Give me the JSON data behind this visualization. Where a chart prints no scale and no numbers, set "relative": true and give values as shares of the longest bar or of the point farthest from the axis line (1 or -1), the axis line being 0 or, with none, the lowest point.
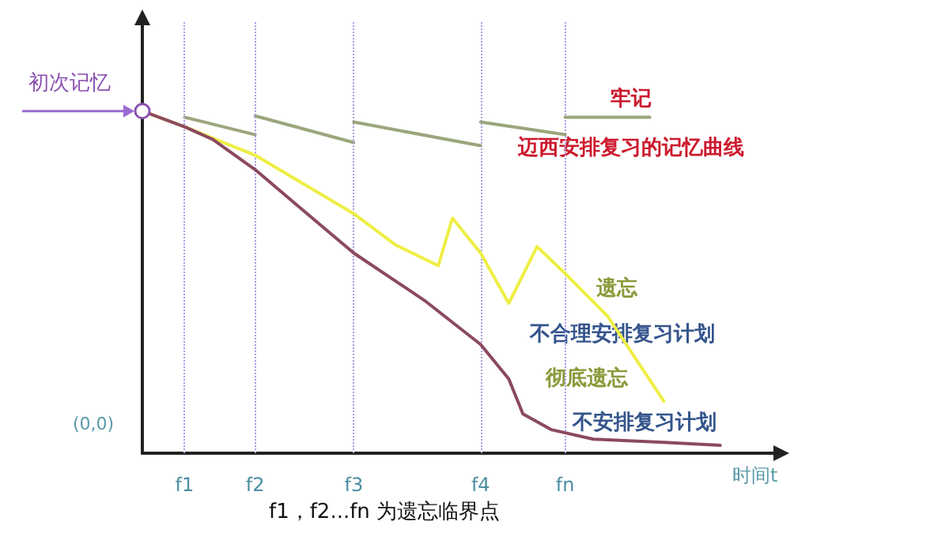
{
  "chart_data": {
    "type": "line",
    "relative": true,
    "xlabel": "时间t",
    "categories": [
      null,
      null,
      null,
      "f1",
      null,
      null,
      null,
      null,
      "f2",
      null,
      null,
      null,
      null,
      null,
      null,
      "f3",
      null,
      null,
      null,
      null,
      null,
      null,
      null,
      null,
      "f4",
      null,
      null,
      null,
      null,
      null,
      "fn",
      null,
      null,
      null,
      null,
      null,
      null,
      null,
      null,
      null,
      null,
      null,
      null,
      null,
      null,
      null
    ],
    "grid": false,
    "legend": false,
    "marker": "none",
    "line_style": "solid",
    "ref_lines": [
      {
        "axis": "x",
        "value": "f1",
        "color": "#a99ce6",
        "line_style": "dotted"
      },
      {
        "axis": "x",
        "value": "f2",
        "color": "#a99ce6",
        "line_style": "dotted"
      },
      {
        "axis": "x",
        "value": "f3",
        "color": "#a99ce6",
        "line_style": "dotted"
      },
      {
        "axis": "x",
        "value": "f4",
        "color": "#a99ce6",
        "line_style": "dotted"
      },
      {
        "axis": "x",
        "value": "fn",
        "color": "#a99ce6",
        "line_style": "dotted"
      }
    ],
    "series": [
      {
        "color": "#9aa67c",
        "values": [
          null,
          null,
          null,
          0.982,
          null,
          null,
          null,
          null,
          0.931,
          null,
          null,
          null,
          null,
          null,
          null,
          null,
          null,
          null,
          null,
          null,
          null,
          null,
          null,
          null,
          null,
          null,
          null,
          null,
          null,
          null,
          null,
          null,
          null,
          null,
          null,
          null,
          null,
          null,
          null,
          null,
          null,
          null,
          null,
          null,
          null,
          null
        ]
      },
      {
        "color": "#9aa67c",
        "values": [
          null,
          null,
          null,
          null,
          null,
          null,
          null,
          null,
          0.986,
          null,
          null,
          null,
          null,
          null,
          null,
          0.908,
          null,
          null,
          null,
          null,
          null,
          null,
          null,
          null,
          null,
          null,
          null,
          null,
          null,
          null,
          null,
          null,
          null,
          null,
          null,
          null,
          null,
          null,
          null,
          null,
          null,
          null,
          null,
          null,
          null,
          null
        ]
      },
      {
        "color": "#9aa67c",
        "values": [
          null,
          null,
          null,
          null,
          null,
          null,
          null,
          null,
          null,
          null,
          null,
          null,
          null,
          null,
          null,
          0.968,
          null,
          null,
          null,
          null,
          null,
          null,
          null,
          null,
          0.899,
          null,
          null,
          null,
          null,
          null,
          null,
          null,
          null,
          null,
          null,
          null,
          null,
          null,
          null,
          null,
          null,
          null,
          null,
          null,
          null,
          null
        ]
      },
      {
        "color": "#9aa67c",
        "values": [
          null,
          null,
          null,
          null,
          null,
          null,
          null,
          null,
          null,
          null,
          null,
          null,
          null,
          null,
          null,
          null,
          null,
          null,
          null,
          null,
          null,
          null,
          null,
          null,
          0.968,
          null,
          null,
          null,
          null,
          null,
          0.931,
          null,
          null,
          null,
          null,
          null,
          null,
          null,
          null,
          null,
          null,
          null,
          null,
          null,
          null,
          null
        ]
      },
      {
        "name": "迈西安排复习的记忆曲线",
        "color": "#9aa67c",
        "values": [
          null,
          null,
          null,
          null,
          null,
          null,
          null,
          null,
          null,
          null,
          null,
          null,
          null,
          null,
          null,
          null,
          null,
          null,
          null,
          null,
          null,
          null,
          null,
          null,
          null,
          null,
          null,
          null,
          null,
          null,
          0.982,
          null,
          null,
          null,
          null,
          null,
          0.982,
          null,
          null,
          null,
          null,
          null,
          null,
          null,
          null,
          null
        ]
      },
      {
        "name": "不合理安排复习计划",
        "color": "#eeee44",
        "values": [
          1,
          null,
          null,
          0.954,
          null,
          null,
          null,
          null,
          0.871,
          null,
          null,
          null,
          null,
          null,
          null,
          0.7,
          null,
          null,
          0.608,
          null,
          null,
          0.548,
          0.687,
          null,
          0.585,
          null,
          0.438,
          null,
          0.604,
          null,
          0.525,
          null,
          null,
          0.401,
          null,
          null,
          null,
          0.152,
          null,
          null,
          null,
          null,
          null,
          null,
          null,
          null
        ]
      },
      {
        "name": "不安排复习计划",
        "color": "#8b4a5e",
        "values": [
          1,
          null,
          null,
          0.954,
          null,
          0.917,
          null,
          null,
          0.829,
          null,
          null,
          0.724,
          null,
          null,
          null,
          0.585,
          null,
          null,
          null,
          null,
          0.447,
          null,
          null,
          null,
          0.318,
          null,
          0.217,
          0.115,
          null,
          0.069,
          null,
          null,
          0.041,
          null,
          null,
          null,
          null,
          0.032,
          null,
          null,
          null,
          0.023,
          null,
          null,
          null,
          null
        ]
      }
    ],
    "annotations": [
      "初次记忆",
      "(0,0)",
      "f1，f2...fn 为遗忘临界点",
      "牢记",
      "遗忘",
      "彻底遗忘"
    ]
  }
}
